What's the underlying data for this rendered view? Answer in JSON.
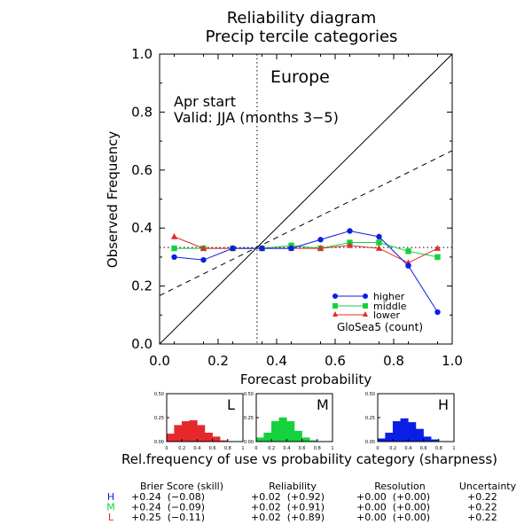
{
  "title_line1": "Reliability diagram",
  "title_line2": "Precip tercile categories",
  "region": "Europe",
  "start_label": "Apr start",
  "valid_label": "Valid: JJA (months 3−5)",
  "model_label": "GloSea5 (count)",
  "colors": {
    "higher": "#0a1ee6",
    "middle": "#14d23c",
    "lower": "#e6282d"
  },
  "chart_data": [
    {
      "type": "line",
      "xlabel": "Forecast probability",
      "ylabel": "Observed Frequency",
      "xlim": [
        0,
        1
      ],
      "ylim": [
        0,
        1
      ],
      "x_ticks": [
        "0.0",
        "0.2",
        "0.4",
        "0.6",
        "0.8",
        "1.0"
      ],
      "y_ticks": [
        "0.0",
        "0.2",
        "0.4",
        "0.6",
        "0.8",
        "1.0"
      ],
      "x": [
        0.05,
        0.15,
        0.25,
        0.35,
        0.45,
        0.55,
        0.65,
        0.75,
        0.85,
        0.95
      ],
      "series": [
        {
          "name": "higher",
          "values": [
            0.3,
            0.29,
            0.33,
            0.33,
            0.33,
            0.36,
            0.39,
            0.37,
            0.27,
            0.11
          ]
        },
        {
          "name": "middle",
          "values": [
            0.33,
            0.33,
            0.33,
            0.33,
            0.34,
            0.33,
            0.35,
            0.35,
            0.32,
            0.3
          ]
        },
        {
          "name": "lower",
          "values": [
            0.37,
            0.33,
            0.33,
            0.33,
            0.33,
            0.33,
            0.34,
            0.33,
            0.28,
            0.33
          ]
        }
      ],
      "climatology": 0.333,
      "no_skill_line": [
        [
          0,
          0.167
        ],
        [
          1,
          0.667
        ]
      ],
      "legend_position": "bottom-right"
    },
    {
      "type": "bar",
      "label": "L",
      "series_name": "lower",
      "y_ticks": [
        "0.50",
        "0.25",
        "0.00"
      ],
      "x_ticks": [
        "0",
        "0.2",
        "0.4",
        "0.6",
        "0.8",
        "1"
      ],
      "ylim": [
        0,
        0.5
      ],
      "values": [
        0.08,
        0.17,
        0.21,
        0.22,
        0.17,
        0.09,
        0.05,
        0.01,
        0.0,
        0.0
      ]
    },
    {
      "type": "bar",
      "label": "M",
      "series_name": "middle",
      "y_ticks": [
        "0.50",
        "0.25",
        "0.00"
      ],
      "x_ticks": [
        "0",
        "0.2",
        "0.4",
        "0.6",
        "0.8",
        "1"
      ],
      "ylim": [
        0,
        0.5
      ],
      "values": [
        0.04,
        0.09,
        0.21,
        0.25,
        0.21,
        0.11,
        0.04,
        0.01,
        0.0,
        0.0
      ]
    },
    {
      "type": "bar",
      "label": "H",
      "series_name": "higher",
      "y_ticks": [
        "0.50",
        "0.25",
        "0.00"
      ],
      "x_ticks": [
        "0",
        "0.2",
        "0.4",
        "0.6",
        "0.8",
        "1"
      ],
      "ylim": [
        0,
        0.5
      ],
      "values": [
        0.03,
        0.09,
        0.21,
        0.24,
        0.2,
        0.13,
        0.05,
        0.02,
        0.0,
        0.0
      ]
    }
  ],
  "sharpness_caption": "Rel.frequency of use vs probability category (sharpness)",
  "scores": {
    "headers": [
      "Brier Score (skill)",
      "Reliability",
      "Resolution",
      "Uncertainty"
    ],
    "rows": [
      {
        "label": "H",
        "color": "#0a1ee6",
        "bs": "+0.24  (−0.08)",
        "rel": "+0.02  (+0.92)",
        "res": "+0.00  (+0.00)",
        "unc": "+0.22"
      },
      {
        "label": "M",
        "color": "#14d23c",
        "bs": "+0.24  (−0.09)",
        "rel": "+0.02  (+0.91)",
        "res": "+0.00  (+0.00)",
        "unc": "+0.22"
      },
      {
        "label": "L",
        "color": "#e6282d",
        "bs": "+0.25  (−0.11)",
        "rel": "+0.02  (+0.89)",
        "res": "+0.00  (+0.00)",
        "unc": "+0.22"
      }
    ]
  }
}
